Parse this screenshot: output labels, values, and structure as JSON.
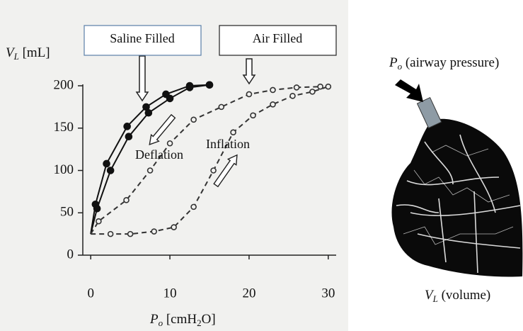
{
  "chart_data": {
    "type": "line",
    "xlabel": [
      "P",
      "o",
      " [cmH",
      "2",
      "O]"
    ],
    "ylabel": [
      "V",
      "L",
      " [mL]"
    ],
    "xlim": [
      -1,
      31
    ],
    "ylim": [
      0,
      200
    ],
    "xticks": [
      0,
      10,
      20,
      30
    ],
    "yticks": [
      0,
      50,
      100,
      150,
      200
    ],
    "series": [
      {
        "x": [
          0,
          0.6,
          2,
          4.6,
          7,
          9.5,
          12.5,
          15
        ],
        "values": [
          25,
          60,
          108,
          152,
          175,
          190,
          200,
          201
        ],
        "color": "#111",
        "marker": "filled",
        "dashed": false
      },
      {
        "x": [
          0,
          0.8,
          2.5,
          4.8,
          7.3,
          10,
          12.5,
          15
        ],
        "values": [
          25,
          55,
          100,
          140,
          168,
          185,
          198,
          201
        ],
        "color": "#111",
        "marker": "filled",
        "dashed": false
      },
      {
        "x": [
          0,
          1,
          4.5,
          7.5,
          10,
          13,
          16.5,
          20,
          23,
          26,
          29
        ],
        "values": [
          25,
          40,
          65,
          100,
          132,
          160,
          175,
          190,
          195,
          198,
          199
        ],
        "color": "#333",
        "marker": "open",
        "dashed": true
      },
      {
        "x": [
          0,
          2.5,
          5,
          8,
          10.5,
          13,
          15.5,
          18,
          20.5,
          23,
          25.5,
          28,
          30
        ],
        "values": [
          25,
          25,
          25,
          28,
          33,
          57,
          100,
          145,
          165,
          178,
          188,
          193,
          199
        ],
        "color": "#333",
        "marker": "open",
        "dashed": true
      }
    ],
    "annotations": [
      "Saline Filled",
      "Air Filled",
      "Deflation",
      "Inflation"
    ]
  },
  "lung_labels": {
    "pressure": [
      "P",
      "o",
      " (airway pressure)"
    ],
    "volume": [
      "V",
      "L",
      " (volume)"
    ]
  }
}
